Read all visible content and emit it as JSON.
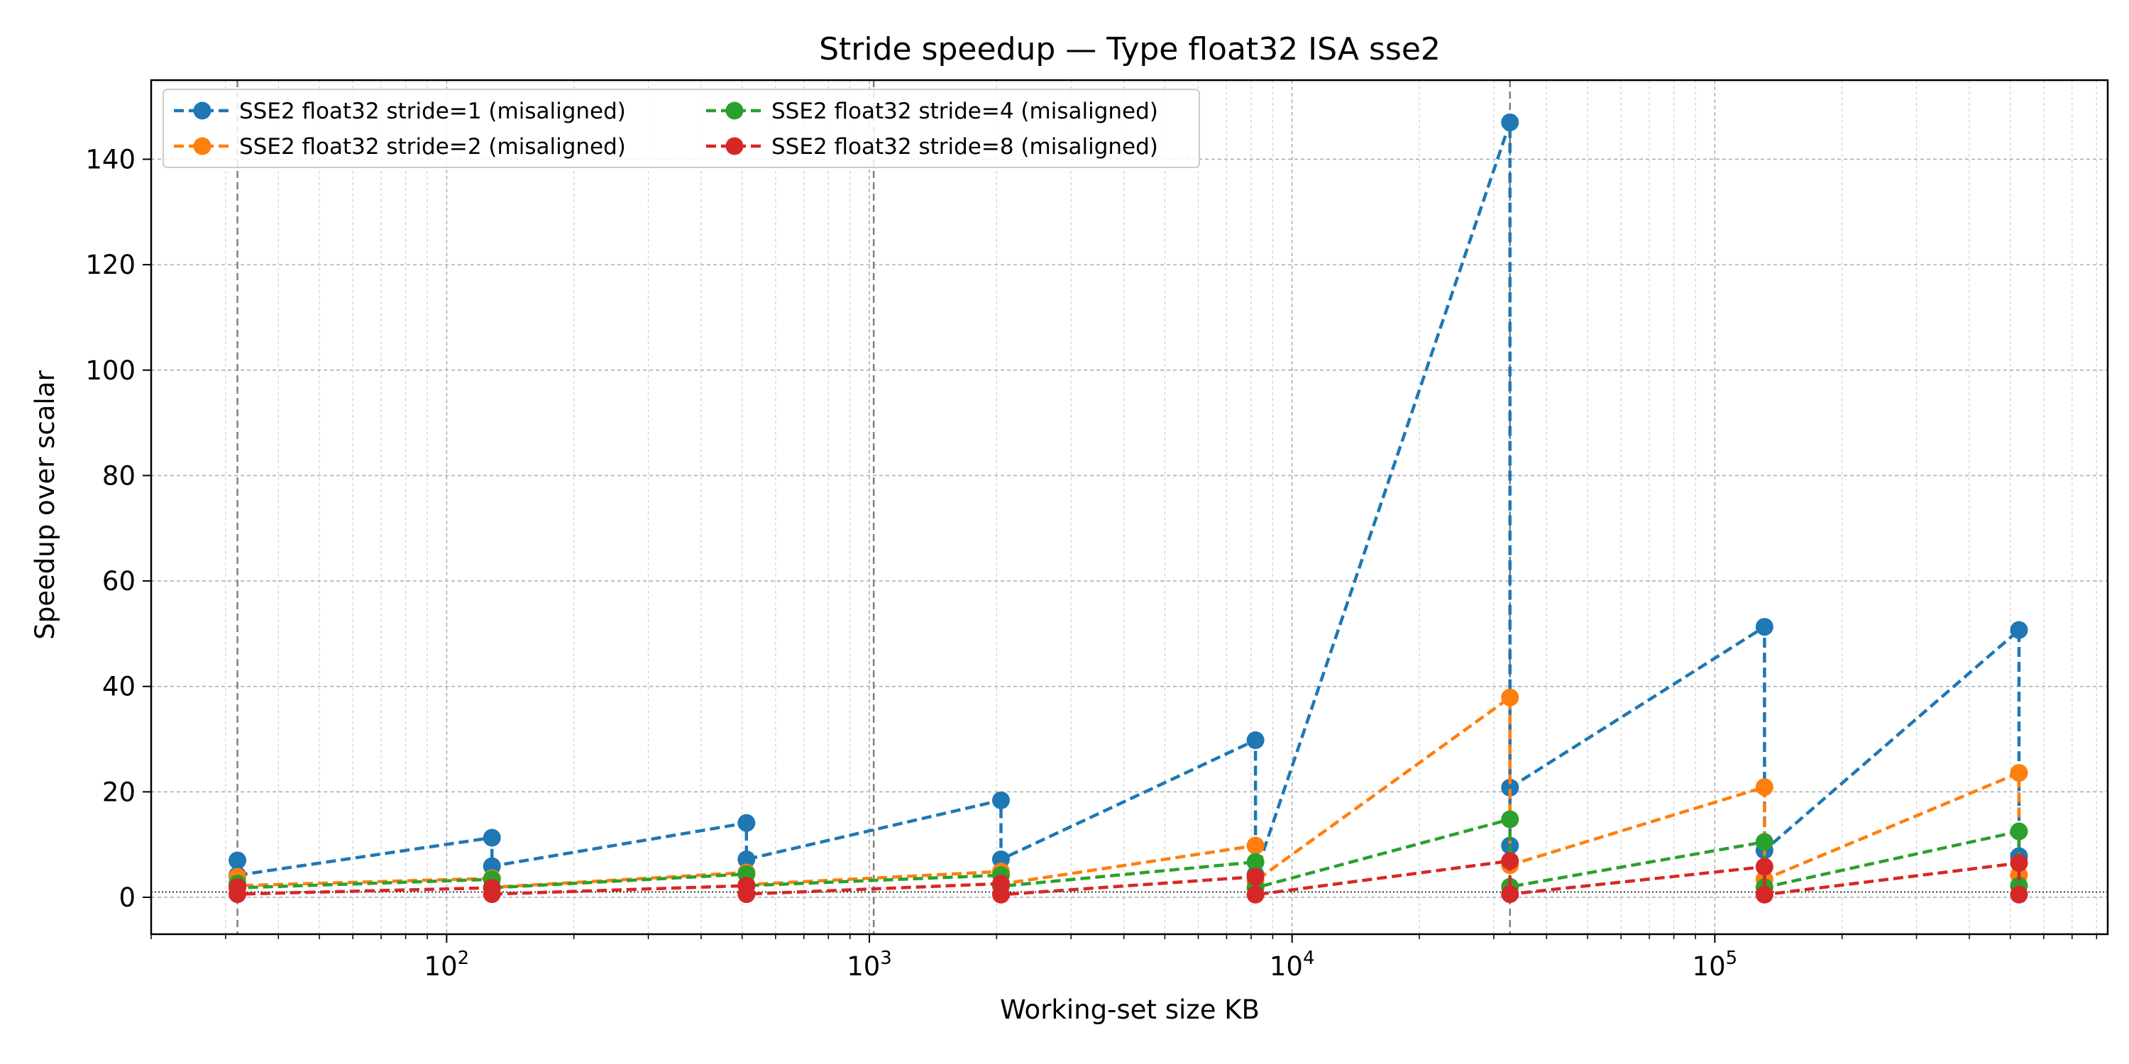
{
  "chart_data": {
    "type": "line",
    "title": "Stride speedup — Type float32 ISA sse2",
    "xlabel": "Working-set size KB",
    "ylabel": "Speedup over scalar",
    "xscale": "log",
    "xlim": [
      20,
      850000
    ],
    "ylim": [
      -7,
      155
    ],
    "y_ticks": [
      0,
      20,
      40,
      60,
      80,
      100,
      120,
      140
    ],
    "x_ticks": [
      {
        "value": 100,
        "base": "10",
        "exp": "2"
      },
      {
        "value": 1000,
        "base": "10",
        "exp": "3"
      },
      {
        "value": 10000,
        "base": "10",
        "exp": "4"
      },
      {
        "value": 100000,
        "base": "10",
        "exp": "5"
      }
    ],
    "grid": true,
    "legend_position": "top-left",
    "reference_line_y": 1,
    "vertical_markers_x": [
      32,
      1024,
      32768
    ],
    "series": [
      {
        "name": "SSE2 float32 stride=1 (misaligned)",
        "color": "#1f77b4",
        "points": [
          [
            32,
            7.0
          ],
          [
            32,
            4.2
          ],
          [
            128,
            11.3
          ],
          [
            128,
            5.9
          ],
          [
            512,
            14.1
          ],
          [
            512,
            7.2
          ],
          [
            2048,
            18.4
          ],
          [
            2048,
            7.2
          ],
          [
            8192,
            29.8
          ],
          [
            8192,
            4.3
          ],
          [
            32768,
            147.0
          ],
          [
            32768,
            9.8
          ],
          [
            32768,
            20.8
          ],
          [
            131072,
            51.3
          ],
          [
            131072,
            8.9
          ],
          [
            524288,
            50.7
          ],
          [
            524288,
            7.8
          ]
        ]
      },
      {
        "name": "SSE2 float32 stride=2 (misaligned)",
        "color": "#ff7f0e",
        "points": [
          [
            32,
            3.9
          ],
          [
            32,
            2.2
          ],
          [
            128,
            3.6
          ],
          [
            128,
            1.9
          ],
          [
            512,
            4.7
          ],
          [
            512,
            2.4
          ],
          [
            2048,
            4.9
          ],
          [
            2048,
            2.5
          ],
          [
            8192,
            9.8
          ],
          [
            8192,
            3.1
          ],
          [
            32768,
            37.9
          ],
          [
            32768,
            6.1
          ],
          [
            131072,
            20.9
          ],
          [
            131072,
            3.4
          ],
          [
            524288,
            23.6
          ],
          [
            524288,
            4.2
          ]
        ]
      },
      {
        "name": "SSE2 float32 stride=4 (misaligned)",
        "color": "#2ca02c",
        "points": [
          [
            32,
            2.6
          ],
          [
            32,
            1.8
          ],
          [
            128,
            3.4
          ],
          [
            128,
            1.8
          ],
          [
            512,
            4.4
          ],
          [
            512,
            2.2
          ],
          [
            2048,
            4.2
          ],
          [
            2048,
            2.1
          ],
          [
            8192,
            6.7
          ],
          [
            8192,
            1.8
          ],
          [
            32768,
            14.8
          ],
          [
            32768,
            2.0
          ],
          [
            131072,
            10.5
          ],
          [
            131072,
            1.9
          ],
          [
            524288,
            12.5
          ],
          [
            524288,
            2.2
          ]
        ]
      },
      {
        "name": "SSE2 float32 stride=8 (misaligned)",
        "color": "#d62728",
        "points": [
          [
            32,
            1.9
          ],
          [
            32,
            0.6
          ],
          [
            128,
            1.8
          ],
          [
            128,
            0.6
          ],
          [
            512,
            2.2
          ],
          [
            512,
            0.6
          ],
          [
            2048,
            2.6
          ],
          [
            2048,
            0.5
          ],
          [
            8192,
            3.9
          ],
          [
            8192,
            0.5
          ],
          [
            32768,
            6.9
          ],
          [
            32768,
            0.6
          ],
          [
            131072,
            5.8
          ],
          [
            131072,
            0.5
          ],
          [
            524288,
            6.5
          ],
          [
            524288,
            0.5
          ]
        ]
      }
    ]
  }
}
